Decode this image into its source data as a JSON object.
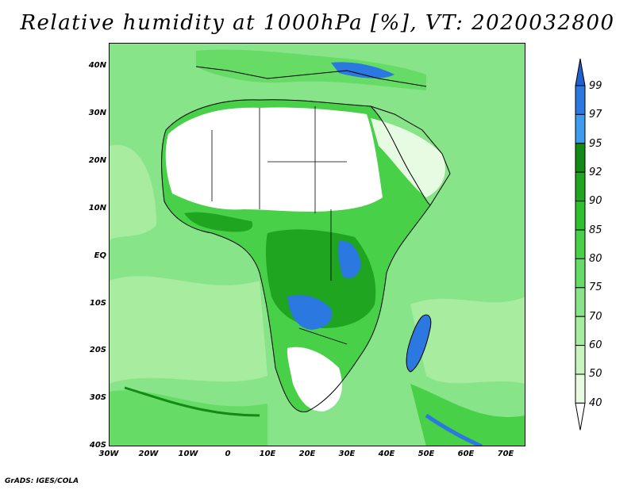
{
  "title": "Relative humidity at 1000hPa [%], VT: 2020032800",
  "credit": "GrADS: IGES/COLA",
  "map": {
    "projection": "lat-lon",
    "region": "Africa",
    "lat_range": [
      -40,
      45
    ],
    "lon_range": [
      -30,
      75
    ],
    "lat_ticks": [
      "40N",
      "30N",
      "20N",
      "10N",
      "EQ",
      "10S",
      "20S",
      "30S",
      "40S"
    ],
    "lon_ticks": [
      "30W",
      "20W",
      "10W",
      "0",
      "10E",
      "20E",
      "30E",
      "40E",
      "50E",
      "60E",
      "70E"
    ]
  },
  "colorbar": {
    "levels": [
      "99",
      "97",
      "95",
      "92",
      "90",
      "85",
      "80",
      "75",
      "70",
      "60",
      "50",
      "40"
    ],
    "colors": {
      "above_99": "#1f5fd0",
      "97_99": "#2a78e0",
      "95_97": "#3d9bf0",
      "92_95": "#138a13",
      "90_92": "#1fa51f",
      "85_90": "#2fbf2f",
      "80_85": "#48d048",
      "75_80": "#66db66",
      "70_75": "#88e488",
      "60_70": "#a8ec9f",
      "50_60": "#c8f4c0",
      "40_50": "#e6fbe2",
      "below_40": "#ffffff"
    }
  }
}
